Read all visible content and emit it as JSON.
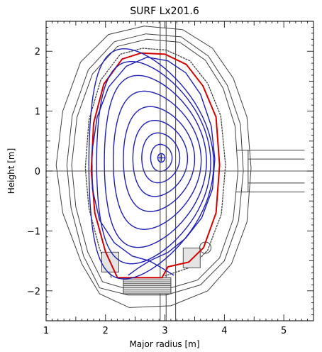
{
  "chart_data": {
    "type": "line",
    "title": "SURF Lx201.6",
    "xlabel": "Major radius [m]",
    "ylabel": "Height [m]",
    "xlim": [
      1.0,
      5.5
    ],
    "ylim": [
      -2.5,
      2.5
    ],
    "xticks": [
      1,
      2,
      3,
      4,
      5
    ],
    "yticks": [
      -2,
      -1,
      0,
      1,
      2
    ],
    "grid": false,
    "horizontal_reference_line": 0,
    "magnetic_axis": [
      2.94,
      0.22
    ],
    "x_point": [
      2.74,
      -1.5
    ],
    "series": [
      {
        "role": "flux-surfaces",
        "color": "#1f1fb4",
        "contours": [
          {
            "r0": 2.94,
            "z0": 0.22,
            "a": 0.06,
            "kappa": 1.2,
            "delta": 0.05
          },
          {
            "r0": 2.94,
            "z0": 0.22,
            "a": 0.18,
            "kappa": 1.25,
            "delta": 0.1
          },
          {
            "r0": 2.93,
            "z0": 0.22,
            "a": 0.32,
            "kappa": 1.3,
            "delta": 0.15
          },
          {
            "r0": 2.92,
            "z0": 0.21,
            "a": 0.46,
            "kappa": 1.38,
            "delta": 0.2
          },
          {
            "r0": 2.9,
            "z0": 0.2,
            "a": 0.6,
            "kappa": 1.46,
            "delta": 0.25
          },
          {
            "r0": 2.87,
            "z0": 0.18,
            "a": 0.74,
            "kappa": 1.56,
            "delta": 0.3
          },
          {
            "r0": 2.84,
            "z0": 0.16,
            "a": 0.86,
            "kappa": 1.67,
            "delta": 0.35
          },
          {
            "r0": 2.81,
            "z0": 0.14,
            "a": 0.96,
            "kappa": 1.76,
            "delta": 0.4
          },
          {
            "r0": 2.77,
            "z0": 0.12,
            "a": 1.05,
            "kappa": 1.83,
            "delta": 0.45
          }
        ],
        "separatrix": [
          [
            2.74,
            -1.5
          ],
          [
            3.05,
            -1.36
          ],
          [
            3.35,
            -1.12
          ],
          [
            3.62,
            -0.78
          ],
          [
            3.8,
            -0.3
          ],
          [
            3.84,
            0.2
          ],
          [
            3.78,
            0.75
          ],
          [
            3.6,
            1.28
          ],
          [
            3.35,
            1.64
          ],
          [
            3.05,
            1.84
          ],
          [
            2.7,
            1.9
          ],
          [
            2.35,
            1.75
          ],
          [
            2.05,
            1.4
          ],
          [
            1.86,
            0.9
          ],
          [
            1.77,
            0.3
          ],
          [
            1.78,
            -0.3
          ],
          [
            1.9,
            -0.82
          ],
          [
            2.15,
            -1.2
          ],
          [
            2.45,
            -1.42
          ],
          [
            2.74,
            -1.5
          ]
        ],
        "divertor_legs": [
          [
            [
              2.74,
              -1.5
            ],
            [
              2.55,
              -1.62
            ],
            [
              2.38,
              -1.74
            ]
          ],
          [
            [
              2.74,
              -1.5
            ],
            [
              2.95,
              -1.62
            ],
            [
              3.15,
              -1.74
            ]
          ]
        ]
      },
      {
        "role": "first-wall",
        "color": "#d40000",
        "points": [
          [
            2.2,
            -1.78
          ],
          [
            2.0,
            -1.35
          ],
          [
            1.82,
            -0.7
          ],
          [
            1.76,
            0.0
          ],
          [
            1.8,
            0.8
          ],
          [
            1.97,
            1.45
          ],
          [
            2.28,
            1.87
          ],
          [
            2.6,
            1.97
          ],
          [
            3.0,
            1.95
          ],
          [
            3.36,
            1.78
          ],
          [
            3.64,
            1.42
          ],
          [
            3.86,
            0.9
          ],
          [
            3.92,
            0.1
          ],
          [
            3.86,
            -0.7
          ],
          [
            3.65,
            -1.28
          ],
          [
            3.4,
            -1.52
          ],
          [
            3.05,
            -1.6
          ],
          [
            2.95,
            -1.78
          ],
          [
            2.3,
            -1.78
          ],
          [
            2.2,
            -1.78
          ]
        ]
      },
      {
        "role": "vessel-structure",
        "color": "#404040",
        "outer_boundary": [
          [
            1.9,
            -2.05
          ],
          [
            1.6,
            -1.55
          ],
          [
            1.28,
            -0.7
          ],
          [
            1.17,
            0.1
          ],
          [
            1.28,
            1.0
          ],
          [
            1.58,
            1.82
          ],
          [
            2.05,
            2.28
          ],
          [
            2.65,
            2.42
          ],
          [
            3.3,
            2.36
          ],
          [
            3.8,
            2.05
          ],
          [
            4.15,
            1.55
          ],
          [
            4.38,
            0.9
          ],
          [
            4.45,
            0.05
          ],
          [
            4.38,
            -0.85
          ],
          [
            4.12,
            -1.55
          ],
          [
            3.72,
            -2.0
          ],
          [
            3.1,
            -2.25
          ],
          [
            2.4,
            -2.28
          ],
          [
            1.9,
            -2.05
          ]
        ],
        "vessel_inner": [
          [
            1.95,
            -1.85
          ],
          [
            1.7,
            -1.35
          ],
          [
            1.5,
            -0.6
          ],
          [
            1.43,
            0.1
          ],
          [
            1.52,
            0.9
          ],
          [
            1.78,
            1.62
          ],
          [
            2.2,
            2.08
          ],
          [
            2.7,
            2.2
          ],
          [
            3.25,
            2.15
          ],
          [
            3.68,
            1.85
          ],
          [
            3.98,
            1.38
          ],
          [
            4.18,
            0.75
          ],
          [
            4.23,
            0.0
          ],
          [
            4.15,
            -0.8
          ],
          [
            3.92,
            -1.45
          ],
          [
            3.55,
            -1.82
          ],
          [
            3.0,
            -1.98
          ],
          [
            2.4,
            -1.98
          ],
          [
            1.95,
            -1.85
          ]
        ],
        "vessel_outer": [
          [
            1.9,
            -1.95
          ],
          [
            1.63,
            -1.42
          ],
          [
            1.42,
            -0.62
          ],
          [
            1.35,
            0.1
          ],
          [
            1.44,
            0.93
          ],
          [
            1.71,
            1.69
          ],
          [
            2.15,
            2.16
          ],
          [
            2.68,
            2.29
          ],
          [
            3.27,
            2.24
          ],
          [
            3.73,
            1.92
          ],
          [
            4.05,
            1.43
          ],
          [
            4.27,
            0.78
          ],
          [
            4.32,
            0.0
          ],
          [
            4.24,
            -0.83
          ],
          [
            4.0,
            -1.5
          ],
          [
            3.6,
            -1.9
          ],
          [
            3.02,
            -2.07
          ],
          [
            2.38,
            -2.07
          ],
          [
            1.9,
            -1.95
          ]
        ],
        "blanket_inner": [
          [
            2.1,
            -1.78
          ],
          [
            1.9,
            -1.3
          ],
          [
            1.72,
            -0.62
          ],
          [
            1.66,
            0.05
          ],
          [
            1.72,
            0.85
          ],
          [
            1.92,
            1.52
          ],
          [
            2.25,
            1.95
          ],
          [
            2.62,
            2.05
          ],
          [
            3.02,
            2.02
          ],
          [
            3.42,
            1.84
          ],
          [
            3.72,
            1.46
          ],
          [
            3.94,
            0.92
          ],
          [
            4.02,
            0.1
          ],
          [
            3.95,
            -0.72
          ],
          [
            3.72,
            -1.32
          ],
          [
            3.45,
            -1.6
          ],
          [
            3.0,
            -1.75
          ]
        ],
        "vertical_port": {
          "r": [
            3.02,
            3.18
          ],
          "z": [
            -2.5,
            2.5
          ]
        },
        "horizontal_port": {
          "r": [
            4.2,
            5.45
          ],
          "z": [
            -0.35,
            0.35
          ]
        },
        "divertor_box": {
          "r": [
            2.3,
            3.1
          ],
          "z": [
            -2.05,
            -1.78
          ]
        }
      }
    ]
  }
}
